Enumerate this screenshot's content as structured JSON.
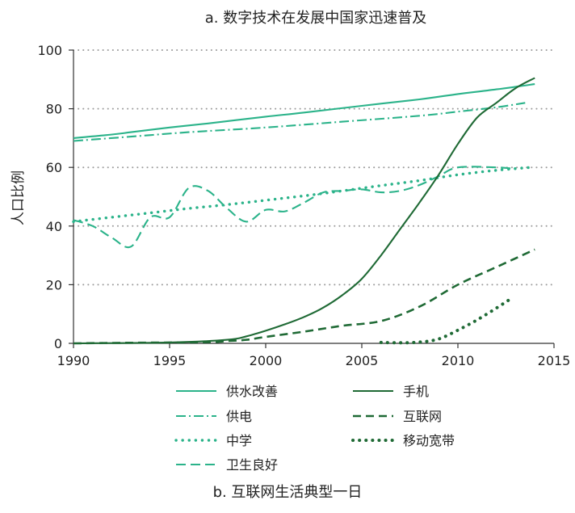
{
  "chart_data": {
    "type": "line",
    "title": "a. 数字技术在发展中国家迅速普及",
    "subtitle": "b. 互联网生活典型一日",
    "xlabel": "",
    "ylabel": "人口比例",
    "xlim": [
      1990,
      2015
    ],
    "ylim": [
      0,
      100
    ],
    "x_ticks": [
      1990,
      1995,
      2000,
      2005,
      2010,
      2015
    ],
    "y_ticks": [
      0,
      20,
      40,
      60,
      80,
      100
    ],
    "grid": "horizontal dotted",
    "legend_position": "bottom",
    "series": [
      {
        "name": "供水改善",
        "color": "#2bb38a",
        "style": "solid",
        "width": "thin",
        "points": [
          [
            1990,
            70
          ],
          [
            1992,
            71.2
          ],
          [
            1993,
            72
          ],
          [
            1995,
            73.6
          ],
          [
            1997,
            75
          ],
          [
            2000,
            77.3
          ],
          [
            2002,
            78.7
          ],
          [
            2005,
            81
          ],
          [
            2008,
            83.2
          ],
          [
            2010,
            85
          ],
          [
            2012,
            86.6
          ],
          [
            2014,
            88.4
          ]
        ]
      },
      {
        "name": "供电",
        "color": "#2bb38a",
        "style": "dashdot",
        "width": "thin",
        "points": [
          [
            1990,
            69
          ],
          [
            1993,
            70.5
          ],
          [
            1996,
            72
          ],
          [
            2000,
            73.6
          ],
          [
            2004,
            75.6
          ],
          [
            2008,
            77.6
          ],
          [
            2010,
            79
          ],
          [
            2012,
            80.5
          ],
          [
            2013.5,
            82
          ]
        ]
      },
      {
        "name": "中学",
        "color": "#2bb38a",
        "style": "dotted",
        "width": "thin",
        "points": [
          [
            1990,
            41.5
          ],
          [
            1992,
            43
          ],
          [
            1994,
            44.5
          ],
          [
            1996,
            46
          ],
          [
            1998,
            47.3
          ],
          [
            2000,
            48.8
          ],
          [
            2002,
            50.3
          ],
          [
            2004,
            52
          ],
          [
            2006,
            53.8
          ],
          [
            2008,
            55.5
          ],
          [
            2010,
            57.5
          ],
          [
            2012,
            59
          ],
          [
            2013.8,
            60
          ]
        ]
      },
      {
        "name": "卫生良好",
        "color": "#2bb38a",
        "style": "dashed",
        "width": "thin",
        "points": [
          [
            1990,
            42
          ],
          [
            1991,
            40
          ],
          [
            1992,
            36
          ],
          [
            1993,
            33
          ],
          [
            1994,
            43
          ],
          [
            1995,
            43
          ],
          [
            1996,
            53
          ],
          [
            1997,
            52
          ],
          [
            1998,
            46
          ],
          [
            1999,
            41.5
          ],
          [
            2000,
            45.5
          ],
          [
            2001,
            45
          ],
          [
            2002,
            48
          ],
          [
            2003,
            51.5
          ],
          [
            2004,
            52
          ],
          [
            2005,
            52.5
          ],
          [
            2006,
            51.5
          ],
          [
            2007,
            52
          ],
          [
            2008,
            54
          ],
          [
            2009,
            57
          ],
          [
            2010,
            60
          ],
          [
            2012,
            60
          ],
          [
            2013,
            59.5
          ]
        ]
      },
      {
        "name": "手机",
        "color": "#1f6a35",
        "style": "solid",
        "width": "thin",
        "points": [
          [
            1990,
            0
          ],
          [
            1995,
            0.3
          ],
          [
            1998,
            1.2
          ],
          [
            1999,
            2.4
          ],
          [
            2000,
            4.3
          ],
          [
            2001,
            6.5
          ],
          [
            2002,
            9
          ],
          [
            2003,
            12.2
          ],
          [
            2004,
            16.5
          ],
          [
            2005,
            22
          ],
          [
            2006,
            30
          ],
          [
            2007,
            39
          ],
          [
            2008,
            48
          ],
          [
            2009,
            57.5
          ],
          [
            2010,
            68
          ],
          [
            2011,
            77
          ],
          [
            2012,
            82
          ],
          [
            2013,
            87
          ],
          [
            2014,
            90.5
          ]
        ]
      },
      {
        "name": "互联网",
        "color": "#1f6a35",
        "style": "dashed",
        "width": "thick",
        "points": [
          [
            1990,
            0
          ],
          [
            1993,
            0.2
          ],
          [
            1997,
            0.4
          ],
          [
            1998,
            0.8
          ],
          [
            1999,
            1.2
          ],
          [
            2000,
            2.2
          ],
          [
            2002,
            4
          ],
          [
            2004,
            6
          ],
          [
            2006,
            7.6
          ],
          [
            2008,
            12.5
          ],
          [
            2010,
            20
          ],
          [
            2012,
            26
          ],
          [
            2014,
            32
          ]
        ]
      },
      {
        "name": "移动宽带",
        "color": "#1f6a35",
        "style": "dotted",
        "width": "thick",
        "points": [
          [
            2006,
            0.3
          ],
          [
            2007,
            0.2
          ],
          [
            2008,
            0.4
          ],
          [
            2009,
            1.5
          ],
          [
            2010,
            4.5
          ],
          [
            2011,
            8
          ],
          [
            2012,
            12
          ],
          [
            2012.7,
            15
          ]
        ]
      }
    ],
    "legend_order": [
      "供水改善",
      "手机",
      "供电",
      "互联网",
      "中学",
      "移动宽带",
      "卫生良好"
    ]
  }
}
